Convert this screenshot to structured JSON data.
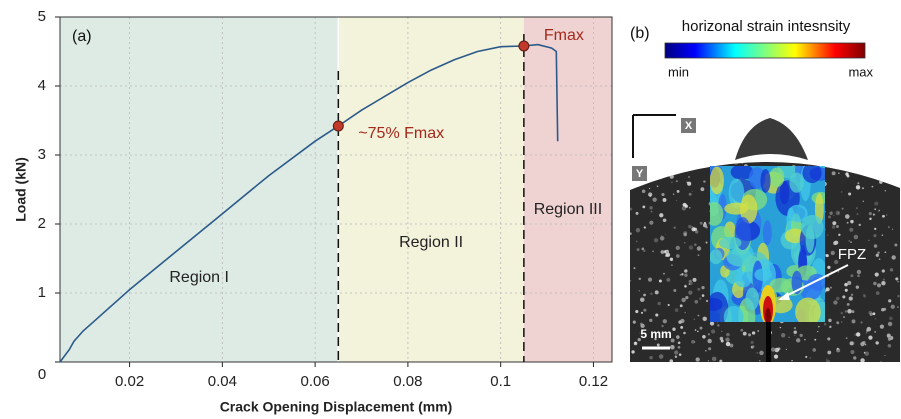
{
  "chart_data": {
    "type": "line",
    "xlabel": "Crack Opening Displacement (mm)",
    "ylabel": "Load (kN)",
    "panel_label": "(a)",
    "x": [
      0.005,
      0.007,
      0.008,
      0.01,
      0.012,
      0.02,
      0.03,
      0.04,
      0.05,
      0.06,
      0.065,
      0.07,
      0.08,
      0.085,
      0.09,
      0.095,
      0.1,
      0.105,
      0.108,
      0.111,
      0.112,
      0.1123
    ],
    "values": [
      0,
      0.18,
      0.3,
      0.45,
      0.57,
      1.05,
      1.6,
      2.15,
      2.7,
      3.2,
      3.42,
      3.65,
      4.05,
      4.23,
      4.38,
      4.5,
      4.57,
      4.58,
      4.6,
      4.55,
      4.5,
      3.2
    ],
    "color": "#2b5a8a",
    "xlim": [
      0.005,
      0.124
    ],
    "ylim": [
      0,
      5
    ],
    "xticks": [
      0.02,
      0.04,
      0.06,
      0.08,
      0.1,
      0.12
    ],
    "yticks": [
      0,
      1,
      2,
      3,
      4,
      5
    ],
    "grid": true,
    "regions": [
      {
        "label": "Region I",
        "start": 0.005,
        "end": 0.065,
        "color": "#deebe4"
      },
      {
        "label": "Region II",
        "start": 0.065,
        "end": 0.105,
        "color": "#f3f2da"
      },
      {
        "label": "Region III",
        "start": 0.105,
        "end": 0.124,
        "color": "#efd3d2"
      }
    ],
    "points": {
      "x": [
        0.065,
        0.105
      ],
      "values": [
        3.42,
        4.58
      ],
      "labels": [
        "~75% Fmax",
        "Fmax"
      ],
      "color": "#c0392b"
    }
  },
  "panel_b": {
    "label": "(b)",
    "colorbar_title": "horizonal strain intesnsity",
    "min": "min",
    "max": "max",
    "axis_x": "X",
    "axis_y": "Y",
    "fpz": "FPZ",
    "scale": "5 mm"
  }
}
